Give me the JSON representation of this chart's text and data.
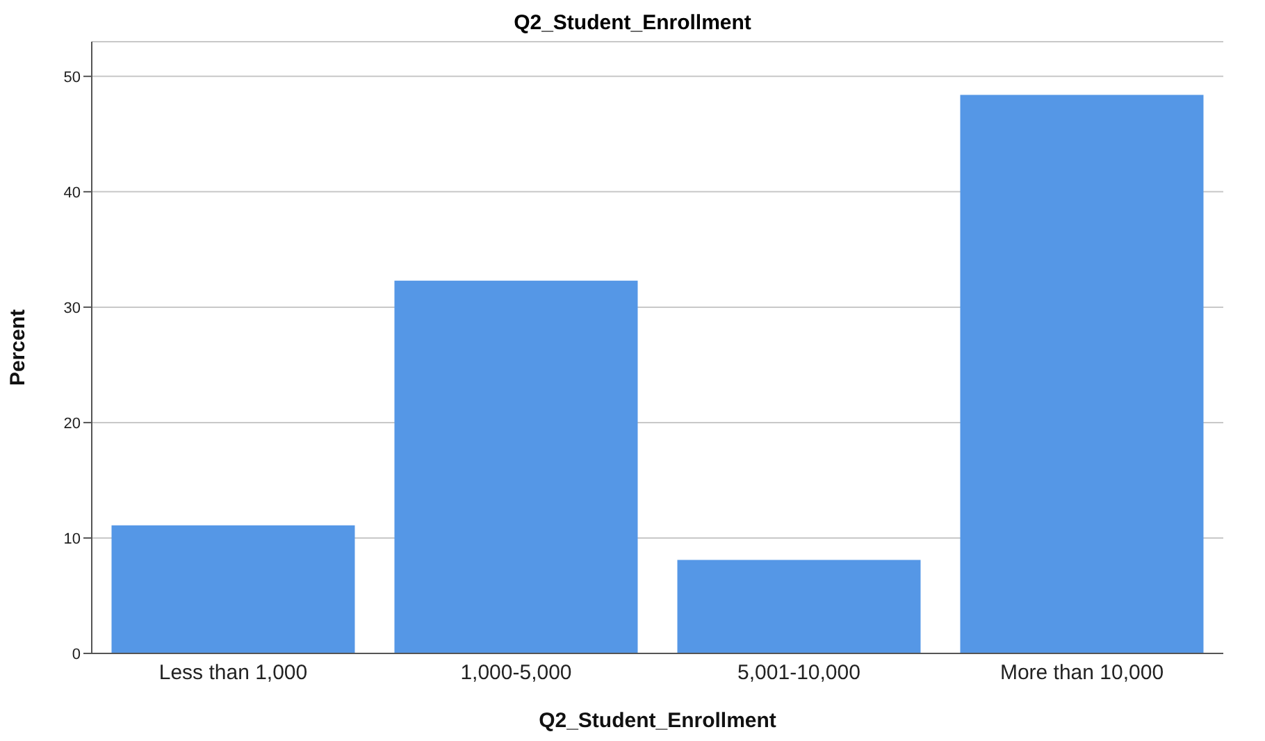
{
  "chart_data": {
    "type": "bar",
    "title": "Q2_Student_Enrollment",
    "xlabel": "Q2_Student_Enrollment",
    "ylabel": "Percent",
    "categories": [
      "Less than 1,000",
      "1,000-5,000",
      "5,001-10,000",
      "More than 10,000"
    ],
    "values": [
      11.1,
      32.3,
      8.1,
      48.4
    ],
    "color": "#5597e6",
    "ylim": [
      0,
      53
    ],
    "yticks": [
      0,
      10,
      20,
      30,
      40,
      50
    ],
    "grid": "y"
  }
}
